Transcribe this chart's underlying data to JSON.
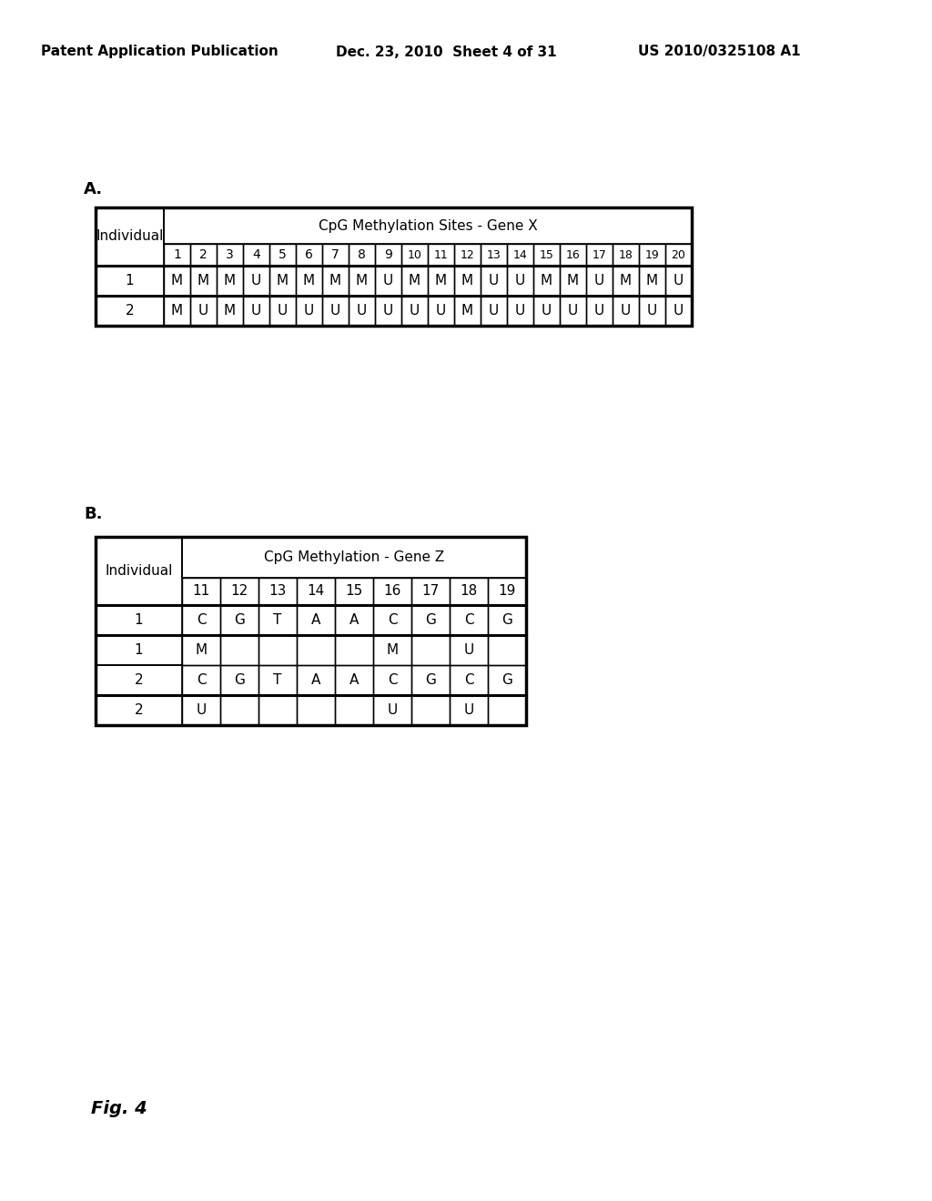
{
  "header_left": "Patent Application Publication",
  "header_mid": "Dec. 23, 2010  Sheet 4 of 31",
  "header_right": "US 2010/0325108 A1",
  "label_A": "A.",
  "label_B": "B.",
  "fig_label": "Fig. 4",
  "table_A": {
    "title": "CpG Methylation Sites - Gene X",
    "col_header": "Individual",
    "site_numbers": [
      "1",
      "2",
      "3",
      "4",
      "5",
      "6",
      "7",
      "8",
      "9",
      "10",
      "11",
      "12",
      "13",
      "14",
      "15",
      "16",
      "17",
      "18",
      "19",
      "20"
    ],
    "rows": [
      {
        "individual": "1",
        "values": [
          "M",
          "M",
          "M",
          "U",
          "M",
          "M",
          "M",
          "M",
          "U",
          "M",
          "M",
          "M",
          "U",
          "U",
          "M",
          "M",
          "U",
          "M",
          "M",
          "U"
        ]
      },
      {
        "individual": "2",
        "values": [
          "M",
          "U",
          "M",
          "U",
          "U",
          "U",
          "U",
          "U",
          "U",
          "U",
          "U",
          "M",
          "U",
          "U",
          "U",
          "U",
          "U",
          "U",
          "U",
          "U"
        ]
      }
    ]
  },
  "table_B": {
    "title": "CpG Methylation - Gene Z",
    "col_header": "Individual",
    "site_numbers": [
      "11",
      "12",
      "13",
      "14",
      "15",
      "16",
      "17",
      "18",
      "19"
    ],
    "rows": [
      {
        "individual": "1",
        "values": [
          "C",
          "G",
          "T",
          "A",
          "A",
          "C",
          "G",
          "C",
          "G"
        ]
      },
      {
        "individual": "1",
        "values": [
          "M",
          "",
          "",
          "",
          "",
          "M",
          "",
          "U",
          ""
        ]
      },
      {
        "individual": "2",
        "values": [
          "C",
          "G",
          "T",
          "A",
          "A",
          "C",
          "G",
          "C",
          "G"
        ]
      },
      {
        "individual": "2",
        "values": [
          "U",
          "",
          "",
          "",
          "",
          "U",
          "",
          "U",
          ""
        ]
      }
    ]
  },
  "bg_color": "#ffffff",
  "text_color": "#000000"
}
